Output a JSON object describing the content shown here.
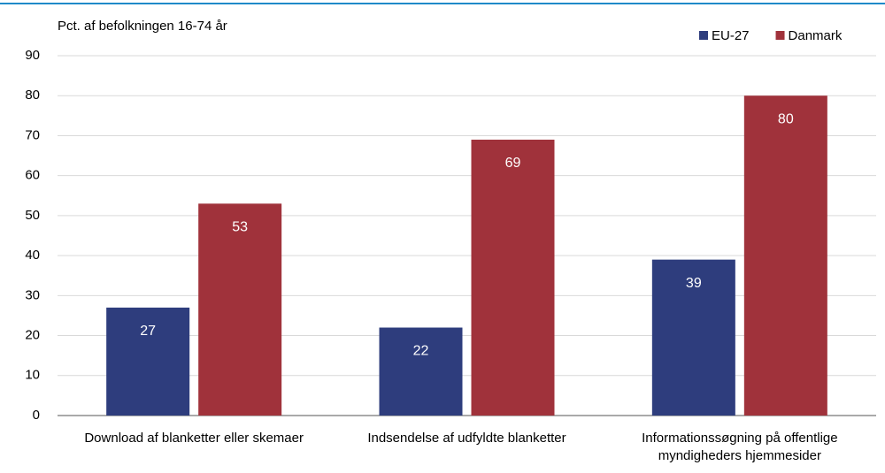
{
  "chart_data": {
    "type": "bar",
    "y_label": "Pct. af befolkningen 16-74 år",
    "categories": [
      "Download af blanketter eller skemaer",
      "Indsendelse af udfyldte blanketter",
      "Informationssøgning på offentlige myndigheders hjemmesider"
    ],
    "series": [
      {
        "name": "EU-27",
        "color": "#2e3d7d",
        "values": [
          27,
          22,
          39
        ]
      },
      {
        "name": "Danmark",
        "color": "#a0323b",
        "values": [
          53,
          69,
          80
        ]
      }
    ],
    "ylim": [
      0,
      90
    ],
    "yticks": [
      0,
      10,
      20,
      30,
      40,
      50,
      60,
      70,
      80,
      90
    ],
    "grid": true,
    "legend": "upper right"
  }
}
